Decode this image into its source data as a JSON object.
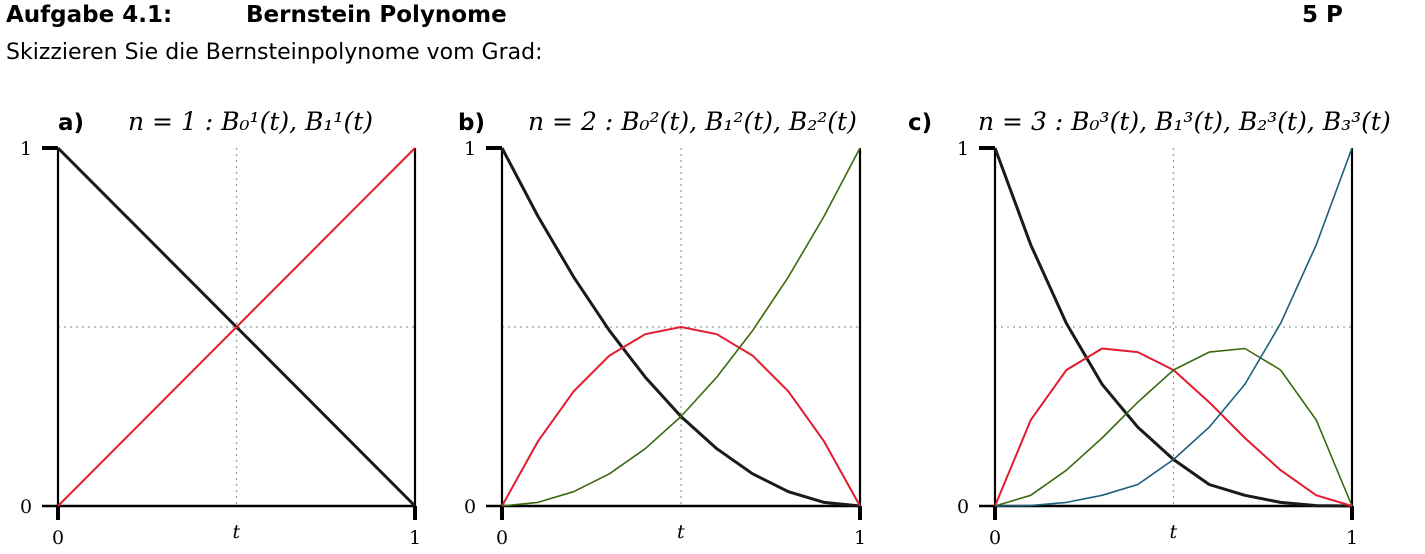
{
  "header": {
    "title": "Aufgabe 4.1:",
    "subtitle": "Bernstein Polynome",
    "points": "5 P",
    "instruction": "Skizzieren Sie die Bernsteinpolynome vom Grad:"
  },
  "colors": {
    "B0": "#1a1a1a",
    "B1": "#e31b2d",
    "B2": "#3a6a10",
    "B3": "#1d5f7a",
    "guide": "#999999"
  },
  "chart_data": [
    {
      "type": "line",
      "panel": "a)",
      "formula": "n = 1 : B₀¹(t), B₁¹(t)",
      "xlabel": "t",
      "x_ticks": [
        "0",
        "1"
      ],
      "y_ticks": [
        "0",
        "1"
      ],
      "xlim": [
        0,
        1
      ],
      "ylim": [
        0,
        1
      ],
      "guides": {
        "vertical": 0.5,
        "horizontal": 0.5
      },
      "x": [
        0,
        0.1,
        0.2,
        0.3,
        0.4,
        0.5,
        0.6,
        0.7,
        0.8,
        0.9,
        1
      ],
      "series": [
        {
          "name": "B₀¹(t)",
          "color": "#1a1a1a",
          "values": [
            1,
            0.9,
            0.8,
            0.7,
            0.6,
            0.5,
            0.4,
            0.3,
            0.2,
            0.1,
            0
          ]
        },
        {
          "name": "B₁¹(t)",
          "color": "#e31b2d",
          "values": [
            0,
            0.1,
            0.2,
            0.3,
            0.4,
            0.5,
            0.6,
            0.7,
            0.8,
            0.9,
            1
          ]
        }
      ]
    },
    {
      "type": "line",
      "panel": "b)",
      "formula": "n = 2 : B₀²(t), B₁²(t), B₂²(t)",
      "xlabel": "t",
      "x_ticks": [
        "0",
        "1"
      ],
      "y_ticks": [
        "0",
        "1"
      ],
      "xlim": [
        0,
        1
      ],
      "ylim": [
        0,
        1
      ],
      "guides": {
        "vertical": 0.5,
        "horizontal": 0.5
      },
      "x": [
        0,
        0.1,
        0.2,
        0.3,
        0.4,
        0.5,
        0.6,
        0.7,
        0.8,
        0.9,
        1
      ],
      "series": [
        {
          "name": "B₀²(t)",
          "color": "#1a1a1a",
          "values": [
            1,
            0.81,
            0.64,
            0.49,
            0.36,
            0.25,
            0.16,
            0.09,
            0.04,
            0.01,
            0
          ]
        },
        {
          "name": "B₁²(t)",
          "color": "#e31b2d",
          "values": [
            0,
            0.18,
            0.32,
            0.42,
            0.48,
            0.5,
            0.48,
            0.42,
            0.32,
            0.18,
            0
          ]
        },
        {
          "name": "B₂²(t)",
          "color": "#3a6a10",
          "values": [
            0,
            0.01,
            0.04,
            0.09,
            0.16,
            0.25,
            0.36,
            0.49,
            0.64,
            0.81,
            1
          ]
        }
      ]
    },
    {
      "type": "line",
      "panel": "c)",
      "formula": "n = 3 : B₀³(t), B₁³(t), B₂³(t), B₃³(t)",
      "xlabel": "t",
      "x_ticks": [
        "0",
        "1"
      ],
      "y_ticks": [
        "0",
        "1"
      ],
      "xlim": [
        0,
        1
      ],
      "ylim": [
        0,
        1
      ],
      "guides": {
        "vertical": 0.5,
        "horizontal": 0.5
      },
      "x": [
        0,
        0.1,
        0.2,
        0.3,
        0.4,
        0.5,
        0.6,
        0.7,
        0.8,
        0.9,
        1
      ],
      "series": [
        {
          "name": "B₀³(t)",
          "color": "#1a1a1a",
          "values": [
            1,
            0.73,
            0.51,
            0.34,
            0.22,
            0.13,
            0.06,
            0.03,
            0.01,
            0.001,
            0
          ]
        },
        {
          "name": "B₁³(t)",
          "color": "#e31b2d",
          "values": [
            0,
            0.24,
            0.38,
            0.44,
            0.43,
            0.38,
            0.29,
            0.19,
            0.1,
            0.03,
            0
          ]
        },
        {
          "name": "B₂³(t)",
          "color": "#3a6a10",
          "values": [
            0,
            0.03,
            0.1,
            0.19,
            0.29,
            0.38,
            0.43,
            0.44,
            0.38,
            0.24,
            0
          ]
        },
        {
          "name": "B₃³(t)",
          "color": "#1d5f7a",
          "values": [
            0,
            0.001,
            0.01,
            0.03,
            0.06,
            0.13,
            0.22,
            0.34,
            0.51,
            0.73,
            1
          ]
        }
      ]
    }
  ]
}
